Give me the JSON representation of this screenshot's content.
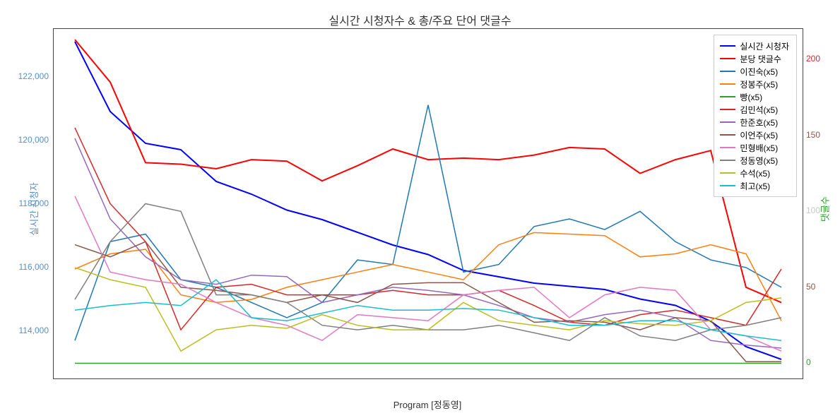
{
  "chart": {
    "title": "실시간 시청자수 & 총/주요 단어 댓글수",
    "x_label": "Program [정동영]",
    "y_left_label": "실시간 시청자",
    "y_right_label": "댓글수",
    "plot_bg": "#ffffff",
    "border_color": "#444444",
    "n_points": 21,
    "y_left": {
      "min": 112500,
      "max": 123500,
      "ticks": [
        114000,
        116000,
        118000,
        120000,
        122000
      ],
      "tick_labels": [
        "114,000",
        "116,000",
        "118,000",
        "120,000",
        "122,000"
      ],
      "color": "#5a8fc7"
    },
    "y_right": {
      "min": -10,
      "max": 220,
      "ticks": [
        0,
        50,
        100,
        150,
        200
      ],
      "tick_labels": [
        "0",
        "50",
        "100",
        "150",
        "200"
      ],
      "tick_colors": [
        "#2ca02c",
        "#8c564b",
        "#c7c7c7",
        "#8c564b",
        "#d62728"
      ]
    },
    "series": [
      {
        "name": "실시간 시청자",
        "axis": "left",
        "color": "#0000ff",
        "width": 2,
        "values": [
          123100,
          120900,
          119900,
          119700,
          118700,
          118300,
          117800,
          117500,
          117100,
          116700,
          116400,
          115900,
          115700,
          115500,
          115400,
          115300,
          115000,
          114800,
          114300,
          113500,
          113100
        ]
      },
      {
        "name": "분당 댓글수",
        "axis": "right",
        "color": "#ff0000",
        "width": 2,
        "values": [
          213,
          185,
          132,
          131,
          128,
          134,
          133,
          120,
          130,
          141,
          134,
          135,
          134,
          137,
          142,
          141,
          125,
          134,
          140,
          50,
          40
        ]
      },
      {
        "name": "이진숙(x5)",
        "axis": "right",
        "color": "#1f77b4",
        "width": 1.5,
        "values": [
          15,
          80,
          85,
          55,
          50,
          40,
          30,
          40,
          68,
          65,
          170,
          60,
          65,
          90,
          95,
          88,
          100,
          80,
          68,
          63,
          50
        ]
      },
      {
        "name": "정봉주(x5)",
        "axis": "right",
        "color": "#ff7f0e",
        "width": 1.5,
        "values": [
          62,
          72,
          75,
          45,
          40,
          42,
          50,
          55,
          60,
          65,
          60,
          55,
          78,
          86,
          85,
          84,
          70,
          72,
          78,
          72,
          28
        ]
      },
      {
        "name": "빵(x5)",
        "axis": "right",
        "color": "#2ca02c",
        "width": 1.5,
        "values": [
          0,
          0,
          0,
          0,
          0,
          0,
          0,
          0,
          0,
          0,
          0,
          0,
          0,
          0,
          0,
          0,
          0,
          0,
          0,
          0,
          0
        ]
      },
      {
        "name": "김민석(x5)",
        "axis": "right",
        "color": "#d62728",
        "width": 1.5,
        "values": [
          155,
          105,
          80,
          22,
          50,
          52,
          45,
          45,
          45,
          48,
          45,
          45,
          48,
          38,
          27,
          25,
          32,
          35,
          30,
          25,
          62
        ]
      },
      {
        "name": "한준호(x5)",
        "axis": "right",
        "color": "#9467bd",
        "width": 1.5,
        "values": [
          148,
          95,
          70,
          55,
          52,
          58,
          57,
          40,
          45,
          50,
          48,
          45,
          38,
          30,
          27,
          32,
          35,
          30,
          15,
          12,
          10
        ]
      },
      {
        "name": "이언주(x5)",
        "axis": "right",
        "color": "#8c564b",
        "width": 1.5,
        "values": [
          78,
          70,
          80,
          50,
          48,
          45,
          40,
          45,
          40,
          52,
          53,
          53,
          40,
          27,
          28,
          27,
          22,
          30,
          28,
          1,
          1
        ]
      },
      {
        "name": "민형배(x5)",
        "axis": "right",
        "color": "#e377c2",
        "width": 1.5,
        "values": [
          110,
          60,
          55,
          52,
          40,
          30,
          25,
          15,
          32,
          30,
          28,
          45,
          48,
          50,
          30,
          45,
          50,
          48,
          22,
          18,
          8
        ]
      },
      {
        "name": "정동영(x5)",
        "axis": "right",
        "color": "#7f7f7f",
        "width": 1.5,
        "values": [
          42,
          80,
          105,
          100,
          45,
          45,
          40,
          25,
          22,
          25,
          22,
          22,
          25,
          20,
          15,
          30,
          18,
          15,
          22,
          25,
          30
        ]
      },
      {
        "name": "수석(x5)",
        "axis": "right",
        "color": "#bcbd22",
        "width": 1.5,
        "values": [
          63,
          55,
          50,
          8,
          22,
          25,
          23,
          32,
          25,
          22,
          22,
          40,
          28,
          25,
          22,
          28,
          26,
          25,
          28,
          40,
          43
        ]
      },
      {
        "name": "최고(x5)",
        "axis": "right",
        "color": "#17becf",
        "width": 1.5,
        "values": [
          35,
          38,
          40,
          38,
          55,
          30,
          28,
          33,
          38,
          35,
          35,
          36,
          35,
          30,
          25,
          25,
          28,
          28,
          22,
          18,
          15
        ]
      }
    ],
    "legend": {
      "border_color": "#cccccc",
      "bg": "#ffffff"
    }
  }
}
